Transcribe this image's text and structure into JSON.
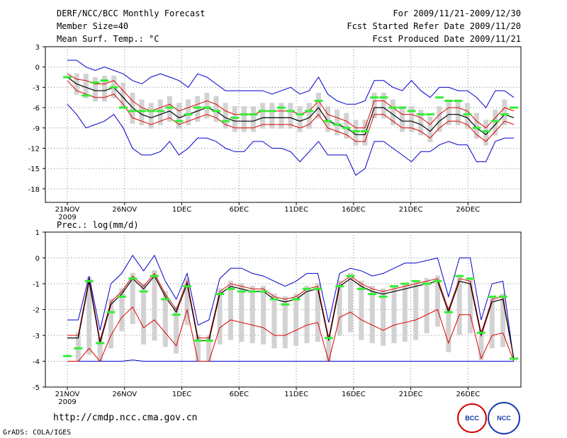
{
  "header": {
    "title": "DERF/NCC/BCC Monthly Forecast",
    "member_size": "Member Size=40",
    "variable": "Mean Surf. Temp.: °C",
    "period": "For 2009/11/21-2009/12/30",
    "refer_date": "Fcst Started Refer Date 2009/11/20",
    "produced_date": "Fcst Produced Date 2009/11/21"
  },
  "footer": {
    "url": "http://cmdp.ncc.cma.gov.cn",
    "credit": "GrADS: COLA/IGES",
    "logo_bcc": "BCC",
    "logo_ncc": "NCC"
  },
  "colors": {
    "ensemble_mean": "#000000",
    "spread": "#dd0000",
    "extreme": "#0000cc",
    "box": "#d2d2d2",
    "marker": "#33ee33"
  },
  "chart_data": [
    {
      "type": "line",
      "title": "Mean Surf. Temp.: °C",
      "x_labels": [
        "21NOV",
        "26NOV",
        "1DEC",
        "6DEC",
        "11DEC",
        "16DEC",
        "21DEC",
        "26DEC"
      ],
      "x_label_days": [
        1,
        6,
        11,
        16,
        21,
        26,
        31,
        36
      ],
      "year_label": "2009",
      "days": 40,
      "ylim": [
        -20,
        3
      ],
      "yticks": [
        3,
        0,
        -3,
        -6,
        -9,
        -12,
        -15,
        -18
      ],
      "series": [
        {
          "name": "ensemble mean",
          "values": [
            -1.5,
            -2.5,
            -3,
            -3.5,
            -3.5,
            -3,
            -4.5,
            -6,
            -7,
            -7.5,
            -7,
            -6.5,
            -7.5,
            -7,
            -6.5,
            -6,
            -6.5,
            -7.5,
            -8,
            -8,
            -8,
            -7.5,
            -7.5,
            -7.5,
            -7.5,
            -8,
            -7.5,
            -6,
            -8,
            -8.5,
            -9,
            -10,
            -10,
            -6,
            -6,
            -7,
            -8,
            -8,
            -8.5,
            -9.5,
            -8,
            -7,
            -7,
            -7.5,
            -9,
            -10,
            -8.5,
            -7,
            -7.5
          ]
        },
        {
          "name": "upper spread",
          "values": [
            -1,
            -1.8,
            -2,
            -2.5,
            -2.5,
            -2,
            -3.5,
            -5,
            -6,
            -6.5,
            -6,
            -5.5,
            -6.5,
            -6,
            -5.5,
            -5,
            -5.5,
            -6.5,
            -7,
            -7,
            -7,
            -6.5,
            -6.5,
            -6.5,
            -6.5,
            -7,
            -6.5,
            -5,
            -7,
            -7.5,
            -8,
            -9,
            -9,
            -5,
            -5,
            -6,
            -7,
            -7,
            -7.5,
            -8.5,
            -7,
            -6,
            -6,
            -6.5,
            -8,
            -9,
            -7.5,
            -6,
            -6.5
          ]
        },
        {
          "name": "lower spread",
          "values": [
            -2,
            -3.5,
            -4,
            -4.5,
            -4.5,
            -4,
            -5.5,
            -7.5,
            -8,
            -8.5,
            -8,
            -7.5,
            -8.5,
            -8,
            -7.5,
            -7,
            -7.5,
            -8.5,
            -9,
            -9,
            -9,
            -8.5,
            -8.5,
            -8.5,
            -8.5,
            -9,
            -8.5,
            -7,
            -9,
            -9.5,
            -10,
            -11,
            -11,
            -7,
            -7,
            -8,
            -9,
            -9,
            -9.5,
            -10.5,
            -9,
            -8,
            -8,
            -8.5,
            -10,
            -11,
            -9.5,
            -8,
            -8.5
          ]
        },
        {
          "name": "maximum",
          "values": [
            1,
            1,
            0,
            -0.5,
            0,
            -0.5,
            -1,
            -2,
            -2.5,
            -1.5,
            -1,
            -1.5,
            -2,
            -3,
            -1,
            -1.5,
            -2.5,
            -3.5,
            -3.5,
            -3.5,
            -3.5,
            -3.5,
            -4,
            -3.5,
            -3,
            -4,
            -3.5,
            -1.5,
            -4,
            -5,
            -5.5,
            -5.5,
            -5,
            -2,
            -2,
            -3,
            -3.5,
            -2,
            -3.5,
            -4.5,
            -3,
            -3,
            -3.5,
            -3.5,
            -4.5,
            -6,
            -3.5,
            -3.5,
            -4.5
          ]
        },
        {
          "name": "minimum",
          "values": [
            -5.5,
            -7,
            -9,
            -8.5,
            -8,
            -7,
            -9,
            -12,
            -13,
            -13,
            -12.5,
            -11,
            -13,
            -12,
            -10.5,
            -10.5,
            -11,
            -12,
            -12.5,
            -12.5,
            -11,
            -11,
            -12,
            -12,
            -12.5,
            -14,
            -12.5,
            -11,
            -13,
            -13,
            -13,
            -16,
            -15,
            -11,
            -11,
            -12,
            -13,
            -14,
            -12.5,
            -12.5,
            -11.5,
            -11,
            -11.5,
            -11.5,
            -14,
            -14,
            -11,
            -10.5,
            -10.5
          ]
        },
        {
          "name": "observation",
          "values": [
            -1.5,
            null,
            -4.2,
            -2.3,
            -2,
            -3,
            -6,
            -6.5,
            -6.5,
            -6.5,
            -6.5,
            -6,
            -8,
            -7,
            -6,
            -6,
            -6.5,
            -8,
            -7.5,
            -7,
            -7,
            -6.5,
            -6.5,
            -6,
            -6.5,
            -7,
            -6.5,
            -5,
            -8,
            -8.5,
            -9,
            -9.5,
            -9.5,
            -4.5,
            -4.5,
            -6,
            -6,
            -6.5,
            -7,
            -7,
            -4.5,
            -5,
            -5,
            -7,
            -9,
            -9.5,
            -8,
            -7,
            -6
          ]
        }
      ]
    },
    {
      "type": "line",
      "title": "Prec.: log(mm/d)",
      "x_labels": [
        "21NOV",
        "26NOV",
        "1DEC",
        "6DEC",
        "11DEC",
        "16DEC",
        "21DEC",
        "26DEC"
      ],
      "x_label_days": [
        1,
        6,
        11,
        16,
        21,
        26,
        31,
        36
      ],
      "year_label": "2009",
      "days": 40,
      "ylim": [
        -5,
        1
      ],
      "yticks": [
        1,
        0,
        -1,
        -2,
        -3,
        -4,
        -5
      ],
      "series": [
        {
          "name": "ensemble mean",
          "values": [
            -3.1,
            -3.1,
            -0.9,
            -3.3,
            -1.8,
            -1.4,
            -0.8,
            -1.2,
            -0.7,
            -1.5,
            -2.1,
            -1.0,
            -3.2,
            -3.2,
            -1.4,
            -1.1,
            -1.2,
            -1.3,
            -1.3,
            -1.6,
            -1.7,
            -1.6,
            -1.3,
            -1.2,
            -3.2,
            -1.1,
            -0.8,
            -1.1,
            -1.3,
            -1.4,
            -1.3,
            -1.2,
            -1.1,
            -1.0,
            -0.9,
            -2.1,
            -0.9,
            -1.0,
            -3.0,
            -1.7,
            -1.6,
            -3.9
          ]
        },
        {
          "name": "upper spread",
          "values": [
            -3.0,
            -3.0,
            -0.8,
            -3.2,
            -1.7,
            -1.3,
            -0.7,
            -1.1,
            -0.6,
            -1.4,
            -2.0,
            -0.9,
            -3.1,
            -3.1,
            -1.3,
            -1.0,
            -1.1,
            -1.2,
            -1.2,
            -1.5,
            -1.6,
            -1.5,
            -1.2,
            -1.1,
            -3.1,
            -1.0,
            -0.7,
            -1.0,
            -1.2,
            -1.3,
            -1.2,
            -1.1,
            -1.0,
            -0.9,
            -0.8,
            -2.0,
            -0.8,
            -0.9,
            -2.9,
            -1.6,
            -1.5,
            -3.9
          ]
        },
        {
          "name": "lower spread",
          "values": [
            -4.0,
            -4.0,
            -3.5,
            -4.0,
            -3.0,
            -2.3,
            -1.9,
            -2.7,
            -2.4,
            -2.9,
            -3.4,
            -2.0,
            -4.0,
            -4.0,
            -2.7,
            -2.4,
            -2.5,
            -2.6,
            -2.7,
            -3.0,
            -3.0,
            -2.8,
            -2.6,
            -2.5,
            -4.0,
            -2.3,
            -2.1,
            -2.4,
            -2.6,
            -2.8,
            -2.6,
            -2.5,
            -2.4,
            -2.2,
            -2.0,
            -3.3,
            -2.2,
            -2.2,
            -3.9,
            -3.0,
            -2.9,
            -4.0
          ]
        },
        {
          "name": "maximum",
          "values": [
            -2.4,
            -2.4,
            -0.7,
            -2.8,
            -1.0,
            -0.6,
            0.1,
            -0.5,
            0.1,
            -0.9,
            -1.6,
            -0.6,
            -2.6,
            -2.4,
            -0.8,
            -0.4,
            -0.4,
            -0.6,
            -0.7,
            -0.9,
            -1.1,
            -0.9,
            -0.6,
            -0.6,
            -2.5,
            -0.6,
            -0.4,
            -0.5,
            -0.7,
            -0.6,
            -0.4,
            -0.2,
            -0.2,
            -0.1,
            0.0,
            -1.5,
            0.0,
            0.0,
            -2.4,
            -1.0,
            -0.9,
            -4.0
          ]
        },
        {
          "name": "minimum",
          "values": [
            -4.0,
            -4.0,
            -4.0,
            -4.0,
            -4.0,
            -4.0,
            -3.95,
            -4.0,
            -4.0,
            -4.0,
            -4.0,
            -4.0,
            -4.0,
            -4.0,
            -4.0,
            -4.0,
            -4.0,
            -4.0,
            -4.0,
            -4.0,
            -4.0,
            -4.0,
            -4.0,
            -4.0,
            -4.0,
            -4.0,
            -4.0,
            -4.0,
            -4.0,
            -4.0,
            -4.0,
            -4.0,
            -4.0,
            -4.0,
            -4.0,
            -4.0,
            -4.0,
            -4.0,
            -4.0,
            -4.0,
            -4.0,
            -4.0
          ]
        },
        {
          "name": "observation",
          "values": [
            -3.8,
            -3.5,
            -0.9,
            -3.3,
            -2.1,
            -1.5,
            -0.8,
            -1.3,
            -0.7,
            -1.6,
            -2.2,
            -1.1,
            -3.2,
            -3.2,
            -1.4,
            -1.2,
            -1.3,
            -1.3,
            -1.3,
            -1.6,
            -1.8,
            -1.6,
            -1.2,
            -1.2,
            -3.1,
            -1.1,
            -0.7,
            -1.2,
            -1.4,
            -1.5,
            -1.1,
            -1.0,
            -0.9,
            -1.0,
            -0.9,
            -2.1,
            -0.7,
            -0.8,
            -2.9,
            -1.5,
            -1.5,
            -3.9
          ]
        }
      ]
    }
  ]
}
